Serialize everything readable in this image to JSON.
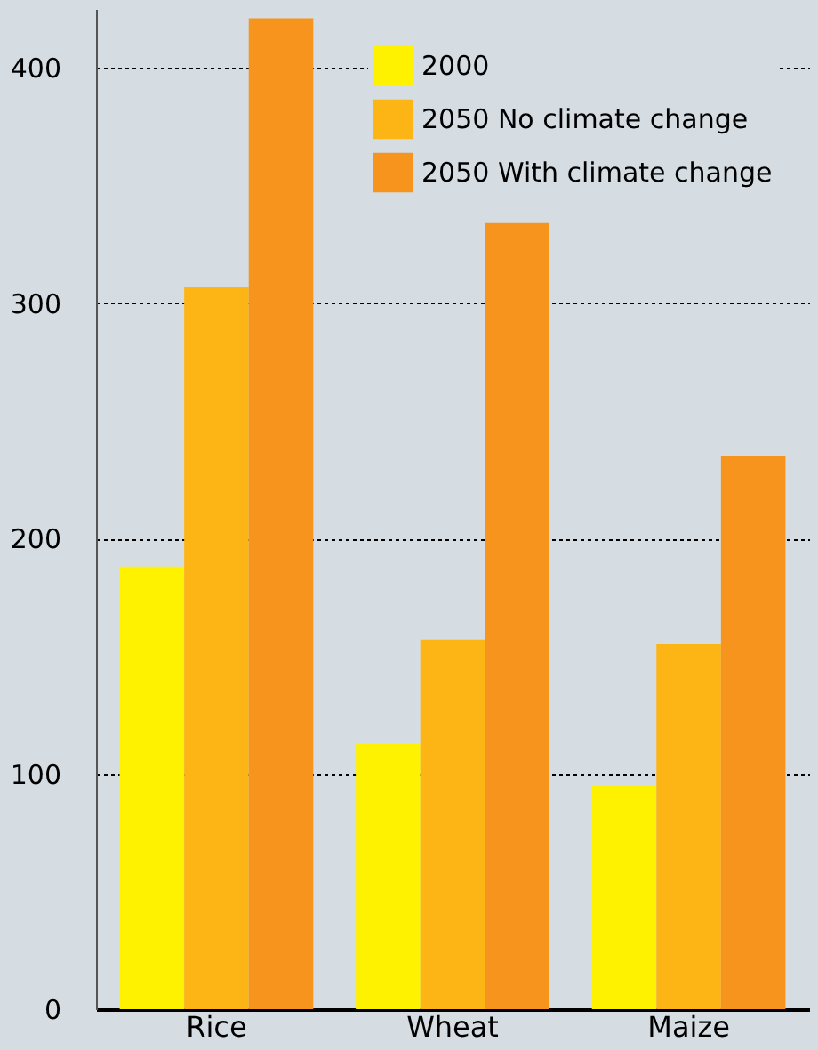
{
  "chart_data": {
    "type": "bar",
    "categories": [
      "Rice",
      "Wheat",
      "Maize"
    ],
    "series": [
      {
        "name": "2000",
        "color": "#fff200",
        "values": [
          188,
          113,
          95
        ]
      },
      {
        "name": "2050 No climate change",
        "color": "#fdb515",
        "values": [
          307,
          157,
          155
        ]
      },
      {
        "name": "2050 With climate change",
        "color": "#f7941d",
        "values": [
          421,
          334,
          235
        ]
      }
    ],
    "ylim": [
      0,
      425
    ],
    "yticks": [
      0,
      100,
      200,
      300,
      400
    ],
    "grid": "y",
    "legend": "top right"
  }
}
